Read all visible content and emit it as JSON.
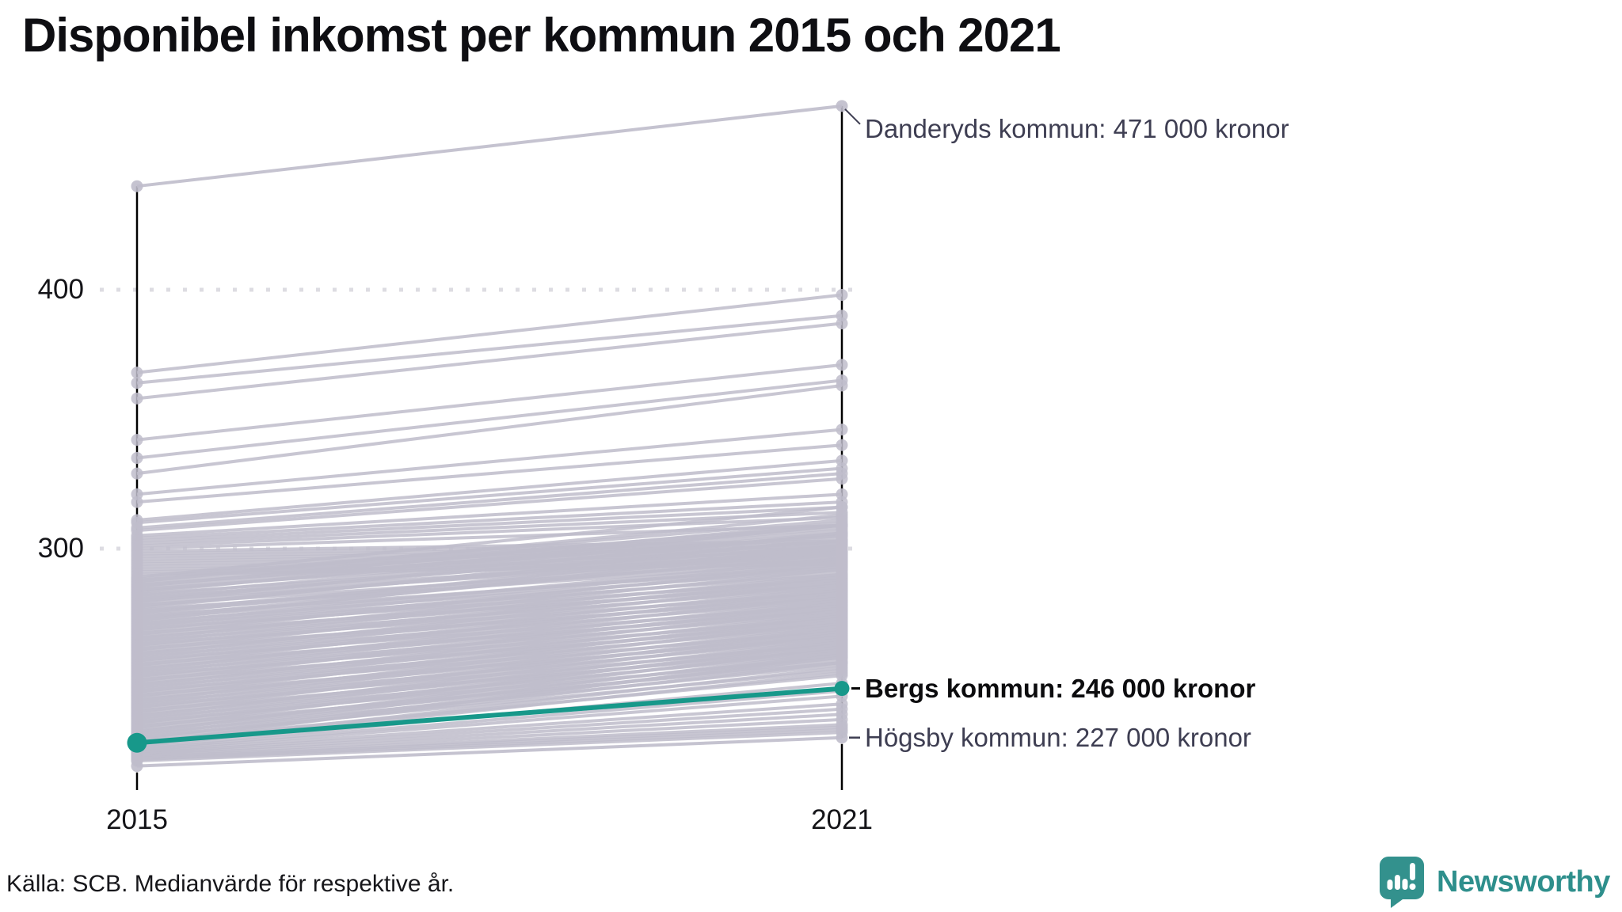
{
  "title": "Disponibel inkomst per kommun 2015 och 2021",
  "source": "Källa: SCB. Medianvärde för respektive år.",
  "branding": {
    "name": "Newsworthy",
    "icon": "newsworthy-speech-bubble-bar-chart"
  },
  "colors": {
    "highlight": "#17988a",
    "line_gray": "#bfbdcb",
    "axis": "#000000",
    "grid": "#dddce2",
    "label_dark": "#3e3e52",
    "label_black": "#0c0c0e",
    "brand": "#2e8f8c"
  },
  "chart_data": {
    "type": "line",
    "subtype": "slopegraph",
    "x": [
      2015,
      2021
    ],
    "x_labels": [
      "2015",
      "2021"
    ],
    "y_ticks": [
      400,
      300
    ],
    "ylim": [
      210,
      480
    ],
    "unit": "tusen kronor (medianvärde)",
    "grid": "dotted-horizontal",
    "annotations": [
      {
        "name": "Danderyds kommun",
        "label": "Danderyds kommun: 471 000 kronor",
        "values": [
          440,
          471
        ],
        "highlight": false
      },
      {
        "name": "Bergs kommun",
        "label": "Bergs kommun: 246 000 kronor",
        "values": [
          225,
          246
        ],
        "highlight": true
      },
      {
        "name": "Högsby kommun",
        "label": "Högsby kommun: 227 000 kronor",
        "values": [
          216,
          227
        ],
        "highlight": false
      }
    ],
    "background_lines": [
      [
        368,
        398
      ],
      [
        364,
        390
      ],
      [
        358,
        387
      ],
      [
        342,
        371
      ],
      [
        335,
        365
      ],
      [
        329,
        363
      ],
      [
        321,
        346
      ],
      [
        318,
        340
      ],
      [
        311,
        334
      ],
      [
        310,
        331
      ],
      [
        308,
        329
      ],
      [
        307,
        327
      ],
      [
        305,
        321
      ],
      [
        304,
        318
      ],
      [
        303,
        316
      ],
      [
        302,
        314
      ],
      [
        301,
        312
      ],
      [
        300,
        309
      ],
      [
        299,
        303
      ],
      [
        298,
        302
      ],
      [
        297,
        301
      ],
      [
        296,
        300
      ],
      [
        295,
        299
      ],
      [
        294,
        298
      ],
      [
        293,
        297
      ],
      [
        292,
        296
      ],
      [
        291,
        295
      ],
      [
        290,
        294
      ],
      [
        289,
        316
      ],
      [
        288.4,
        311
      ],
      [
        287.8,
        309
      ],
      [
        287.2,
        313
      ],
      [
        286.6,
        308
      ],
      [
        286,
        305
      ],
      [
        285.4,
        310
      ],
      [
        284.8,
        307
      ],
      [
        284.2,
        303
      ],
      [
        283.6,
        306
      ],
      [
        283,
        309
      ],
      [
        282.4,
        301
      ],
      [
        281.8,
        305
      ],
      [
        281.2,
        299
      ],
      [
        280.6,
        303
      ],
      [
        280,
        298
      ],
      [
        279.4,
        306
      ],
      [
        278.8,
        300
      ],
      [
        278.2,
        296
      ],
      [
        277.6,
        302
      ],
      [
        277,
        304
      ],
      [
        276.4,
        295
      ],
      [
        275.8,
        299
      ],
      [
        275.2,
        297
      ],
      [
        274.6,
        301
      ],
      [
        274,
        293
      ],
      [
        273.4,
        298
      ],
      [
        272.8,
        294
      ],
      [
        272.2,
        300
      ],
      [
        271.6,
        292
      ],
      [
        271,
        296
      ],
      [
        270.4,
        290
      ],
      [
        269.8,
        295
      ],
      [
        269.2,
        288
      ],
      [
        268.6,
        293
      ],
      [
        268,
        291
      ],
      [
        267.4,
        286
      ],
      [
        266.8,
        294
      ],
      [
        266.2,
        289
      ],
      [
        265.6,
        287
      ],
      [
        265,
        292
      ],
      [
        264.4,
        285
      ],
      [
        263.8,
        290
      ],
      [
        263.2,
        283
      ],
      [
        262.6,
        288
      ],
      [
        262,
        286
      ],
      [
        261.4,
        281
      ],
      [
        260.8,
        289
      ],
      [
        260.2,
        284
      ],
      [
        259.6,
        282
      ],
      [
        259,
        287
      ],
      [
        258.4,
        280
      ],
      [
        257.8,
        285
      ],
      [
        257.2,
        278
      ],
      [
        256.6,
        283
      ],
      [
        256,
        281
      ],
      [
        255.4,
        276
      ],
      [
        254.8,
        284
      ],
      [
        254.2,
        279
      ],
      [
        253.6,
        277
      ],
      [
        253,
        282
      ],
      [
        252.4,
        275
      ],
      [
        251.8,
        280
      ],
      [
        251.2,
        273
      ],
      [
        250.6,
        278
      ],
      [
        250,
        276
      ],
      [
        249.4,
        271
      ],
      [
        248.8,
        279
      ],
      [
        248.2,
        274
      ],
      [
        247.6,
        272
      ],
      [
        247,
        277
      ],
      [
        246.4,
        270
      ],
      [
        245.8,
        275
      ],
      [
        245.2,
        268
      ],
      [
        244.6,
        273
      ],
      [
        244,
        271
      ],
      [
        243.4,
        266
      ],
      [
        242.8,
        274
      ],
      [
        242.2,
        269
      ],
      [
        241.6,
        267
      ],
      [
        241,
        272
      ],
      [
        240.4,
        265
      ],
      [
        239.8,
        270
      ],
      [
        239.2,
        263
      ],
      [
        238.6,
        268
      ],
      [
        238,
        266
      ],
      [
        237.4,
        261
      ],
      [
        236.8,
        269
      ],
      [
        236.2,
        264
      ],
      [
        235.6,
        262
      ],
      [
        235,
        267
      ],
      [
        234.4,
        260
      ],
      [
        233.8,
        265
      ],
      [
        233.2,
        258
      ],
      [
        232.6,
        263
      ],
      [
        232,
        261
      ],
      [
        231.4,
        256
      ],
      [
        230.8,
        264
      ],
      [
        230.2,
        259
      ],
      [
        229.6,
        257
      ],
      [
        229,
        262
      ],
      [
        228.4,
        255
      ],
      [
        227.8,
        260
      ],
      [
        227.2,
        253
      ],
      [
        226.6,
        258
      ],
      [
        226,
        256
      ],
      [
        225.4,
        251
      ],
      [
        224.8,
        259
      ],
      [
        224.2,
        254
      ],
      [
        223.6,
        252
      ],
      [
        223,
        248
      ],
      [
        222.5,
        245
      ],
      [
        222,
        243
      ],
      [
        221.5,
        240
      ],
      [
        221,
        238
      ],
      [
        220.5,
        236
      ],
      [
        220,
        234
      ],
      [
        219.5,
        232
      ],
      [
        219,
        231
      ],
      [
        218.5,
        230
      ],
      [
        218,
        229
      ]
    ]
  }
}
